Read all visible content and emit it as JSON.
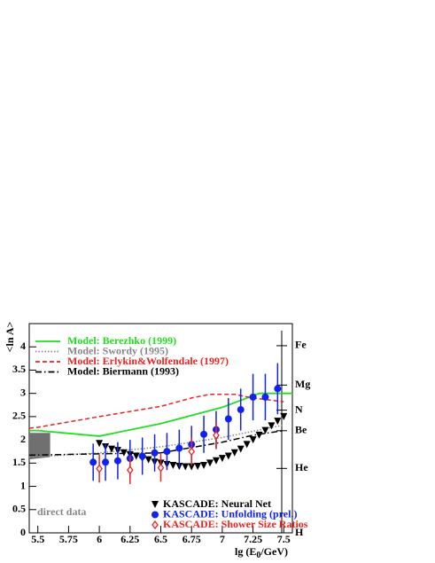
{
  "chart_data": {
    "type": "line",
    "ylabel": "<ln A>",
    "xlabel_parts": [
      "lg (E",
      "0",
      "/GeV)"
    ],
    "xlim": [
      5.43,
      7.57
    ],
    "ylim": [
      0,
      4.5
    ],
    "xticks": [
      5.5,
      5.75,
      6,
      6.25,
      6.5,
      6.75,
      7,
      7.25,
      7.5
    ],
    "yticks": [
      0,
      0.5,
      1,
      1.5,
      2,
      2.5,
      3,
      3.5,
      4
    ],
    "y2lim": [
      0,
      4.5
    ],
    "y2ticks": [
      {
        "value": 0,
        "label": "H"
      },
      {
        "value": 1.386,
        "label": "He"
      },
      {
        "value": 2.197,
        "label": "Be"
      },
      {
        "value": 2.639,
        "label": "N"
      },
      {
        "value": 3.178,
        "label": "Mg"
      },
      {
        "value": 4.025,
        "label": "Fe"
      }
    ],
    "band": {
      "label": "direct data",
      "color": "#707070",
      "x": [
        5.43,
        5.6
      ],
      "low": [
        1.58,
        1.63
      ],
      "high": [
        2.15,
        2.15
      ]
    },
    "series": [
      {
        "name": "Model: Berezhko (1999)",
        "color": "#22dd22",
        "style": "solid",
        "legend": "top-left",
        "x": [
          5.43,
          5.5,
          6.0,
          6.5,
          7.0,
          7.15,
          7.3,
          7.57
        ],
        "values": [
          2.2,
          2.2,
          2.08,
          2.35,
          2.7,
          2.85,
          3.0,
          3.0
        ]
      },
      {
        "name": "Model: Swordy (1995)",
        "color": "#888888",
        "style": "dotted",
        "legend": "top-left",
        "x": [
          5.43,
          6.0,
          6.5,
          7.0,
          7.5
        ],
        "values": [
          1.63,
          1.72,
          1.85,
          2.05,
          2.32
        ]
      },
      {
        "name": "Model: Erlykin&Wolfendale (1997)",
        "color": "#ee2222",
        "style": "dashed",
        "legend": "top-left",
        "x": [
          5.43,
          5.5,
          6.0,
          6.5,
          6.75,
          6.9,
          7.1,
          7.25,
          7.5
        ],
        "values": [
          2.25,
          2.27,
          2.5,
          2.72,
          2.9,
          2.98,
          2.98,
          2.9,
          2.82
        ]
      },
      {
        "name": "Model: Biermann (1993)",
        "color": "#000000",
        "style": "dashdot",
        "legend": "top-left",
        "x": [
          5.43,
          6.0,
          6.5,
          7.0,
          7.25,
          7.5
        ],
        "values": [
          1.67,
          1.7,
          1.72,
          1.95,
          2.1,
          2.2
        ]
      },
      {
        "name": "KASCADE: Neural Net",
        "color": "#000000",
        "marker": "triangle-down",
        "legend": "bottom-right",
        "x": [
          6.0,
          6.05,
          6.1,
          6.15,
          6.2,
          6.25,
          6.3,
          6.35,
          6.4,
          6.45,
          6.5,
          6.55,
          6.6,
          6.65,
          6.7,
          6.75,
          6.8,
          6.85,
          6.9,
          6.95,
          7.0,
          7.05,
          7.1,
          7.15,
          7.2,
          7.25,
          7.3,
          7.35,
          7.4,
          7.45,
          7.5
        ],
        "values": [
          1.92,
          1.85,
          1.8,
          1.77,
          1.72,
          1.68,
          1.65,
          1.6,
          1.57,
          1.52,
          1.5,
          1.47,
          1.45,
          1.43,
          1.42,
          1.42,
          1.43,
          1.45,
          1.5,
          1.55,
          1.6,
          1.65,
          1.72,
          1.8,
          1.9,
          2.0,
          2.1,
          2.2,
          2.3,
          2.4,
          2.5
        ]
      },
      {
        "name": "KASCADE: Unfolding (prel.)",
        "color": "#1122ee",
        "marker": "circle",
        "legend": "bottom-right",
        "x": [
          5.95,
          6.05,
          6.15,
          6.25,
          6.35,
          6.45,
          6.55,
          6.65,
          6.75,
          6.85,
          6.95,
          7.05,
          7.15,
          7.25,
          7.35,
          7.45
        ],
        "values": [
          1.52,
          1.52,
          1.55,
          1.6,
          1.65,
          1.72,
          1.75,
          1.82,
          1.9,
          2.12,
          2.22,
          2.45,
          2.65,
          2.92,
          2.92,
          3.1
        ],
        "errors": [
          0.4,
          0.4,
          0.4,
          0.4,
          0.4,
          0.4,
          0.4,
          0.4,
          0.4,
          0.4,
          0.4,
          0.45,
          0.45,
          0.5,
          0.5,
          0.55
        ]
      },
      {
        "name": "KASCADE: Shower Size Ratios",
        "color": "#ee2222",
        "marker": "diamond-open",
        "legend": "bottom-right",
        "x": [
          6.0,
          6.25,
          6.5,
          6.75,
          6.95
        ],
        "values": [
          1.38,
          1.35,
          1.4,
          1.75,
          2.1
        ],
        "errors": [
          0.3,
          0.3,
          0.3,
          0.3,
          0.3
        ]
      }
    ]
  }
}
